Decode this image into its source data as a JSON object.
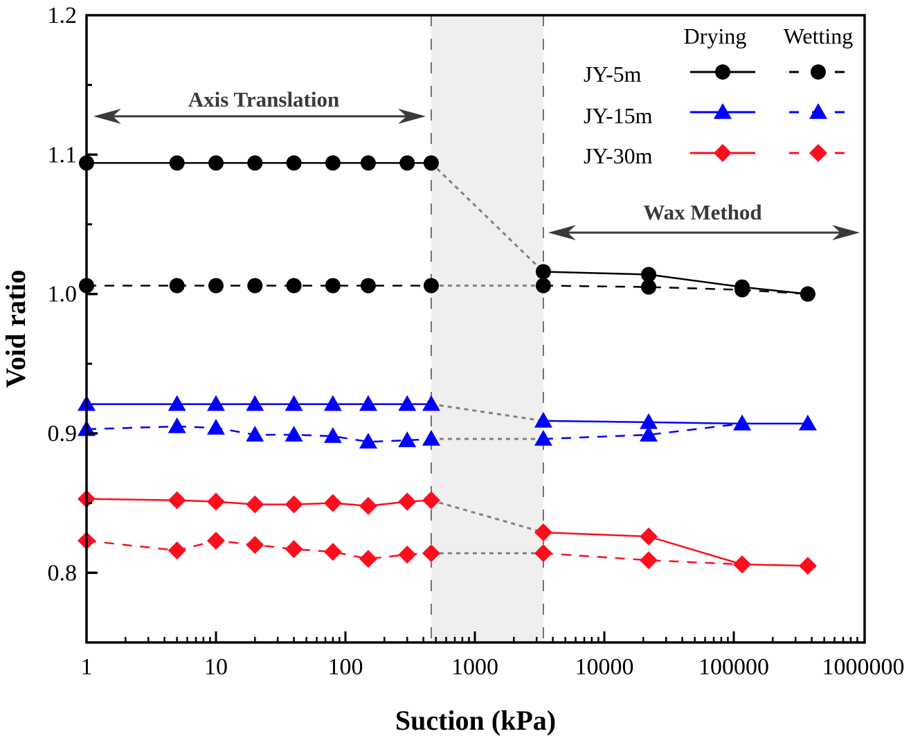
{
  "chart_data": {
    "type": "line",
    "title": "",
    "xlabel": "Suction (kPa)",
    "ylabel": "Void ratio",
    "xscale": "log",
    "xlim": [
      1,
      1000000
    ],
    "ylim": [
      0.75,
      1.2
    ],
    "grid": false,
    "x_ticks": [
      1,
      10,
      100,
      1000,
      10000,
      100000,
      1000000
    ],
    "x_tick_labels": [
      "1",
      "10",
      "100",
      "1000",
      "10000",
      "100000",
      "1000000"
    ],
    "y_ticks": [
      0.8,
      0.9,
      1.0,
      1.1,
      1.2
    ],
    "y_tick_labels": [
      "0.8",
      "0.9",
      "1.0",
      "1.1",
      "1.2"
    ],
    "legend": {
      "placement": "top-right",
      "column_headers": [
        "Drying",
        "Wetting"
      ],
      "rows": [
        "JY-5m",
        "JY-15m",
        "JY-30m"
      ]
    },
    "shaded_region": {
      "x_range": [
        460,
        3380
      ],
      "color": "#efefef"
    },
    "annotations": [
      {
        "text": "Axis Translation",
        "x_range": [
          1,
          460
        ],
        "arrow": "double"
      },
      {
        "text": "Wax Method",
        "x_range": [
          3380,
          1000000
        ],
        "arrow": "double"
      }
    ],
    "series": [
      {
        "name": "JY-5m Drying",
        "sample": "JY-5m",
        "path": "Drying",
        "color": "#000000",
        "marker": "circle",
        "linestyle": "solid",
        "x": [
          1,
          5,
          10,
          20,
          40,
          80,
          150,
          300,
          460,
          3380,
          22000,
          116000,
          373000
        ],
        "y": [
          1.094,
          1.094,
          1.094,
          1.094,
          1.094,
          1.094,
          1.094,
          1.094,
          1.094,
          1.016,
          1.014,
          1.005,
          1.0
        ]
      },
      {
        "name": "JY-5m Wetting",
        "sample": "JY-5m",
        "path": "Wetting",
        "color": "#000000",
        "marker": "circle",
        "linestyle": "dashed",
        "x": [
          1,
          5,
          10,
          20,
          40,
          80,
          150,
          460,
          3380,
          22000,
          116000,
          373000
        ],
        "y": [
          1.006,
          1.006,
          1.006,
          1.006,
          1.006,
          1.006,
          1.006,
          1.006,
          1.006,
          1.005,
          1.003,
          1.0
        ]
      },
      {
        "name": "JY-15m Drying",
        "sample": "JY-15m",
        "path": "Drying",
        "color": "#0000ff",
        "marker": "triangle",
        "linestyle": "solid",
        "x": [
          1,
          5,
          10,
          20,
          40,
          80,
          150,
          300,
          460,
          3380,
          22000,
          116000,
          373000
        ],
        "y": [
          0.921,
          0.921,
          0.921,
          0.921,
          0.921,
          0.921,
          0.921,
          0.921,
          0.921,
          0.909,
          0.908,
          0.907,
          0.907
        ]
      },
      {
        "name": "JY-15m Wetting",
        "sample": "JY-15m",
        "path": "Wetting",
        "color": "#0000ff",
        "marker": "triangle",
        "linestyle": "dashed",
        "x": [
          1,
          5,
          10,
          20,
          40,
          80,
          150,
          300,
          460,
          3380,
          22000,
          116000
        ],
        "y": [
          0.903,
          0.905,
          0.904,
          0.899,
          0.899,
          0.898,
          0.894,
          0.895,
          0.896,
          0.896,
          0.899,
          0.907
        ]
      },
      {
        "name": "JY-30m Drying",
        "sample": "JY-30m",
        "path": "Drying",
        "color": "#ff0d1d",
        "marker": "diamond",
        "linestyle": "solid",
        "x": [
          1,
          5,
          10,
          20,
          40,
          80,
          150,
          300,
          460,
          3380,
          22000,
          116000,
          373000
        ],
        "y": [
          0.853,
          0.852,
          0.851,
          0.849,
          0.849,
          0.85,
          0.848,
          0.851,
          0.852,
          0.829,
          0.826,
          0.806,
          0.805
        ]
      },
      {
        "name": "JY-30m Wetting",
        "sample": "JY-30m",
        "path": "Wetting",
        "color": "#ff0d1d",
        "marker": "diamond",
        "linestyle": "dashed",
        "x": [
          1,
          5,
          10,
          20,
          40,
          80,
          150,
          300,
          460,
          3380,
          22000,
          116000
        ],
        "y": [
          0.823,
          0.816,
          0.823,
          0.82,
          0.817,
          0.815,
          0.81,
          0.813,
          0.814,
          0.814,
          0.809,
          0.806
        ]
      }
    ],
    "connectors": {
      "color": "#808080",
      "linestyle": "dotted",
      "note": "grey dotted links bridge each series across the shaded gap (460 kPa to 3380 kPa)"
    }
  }
}
